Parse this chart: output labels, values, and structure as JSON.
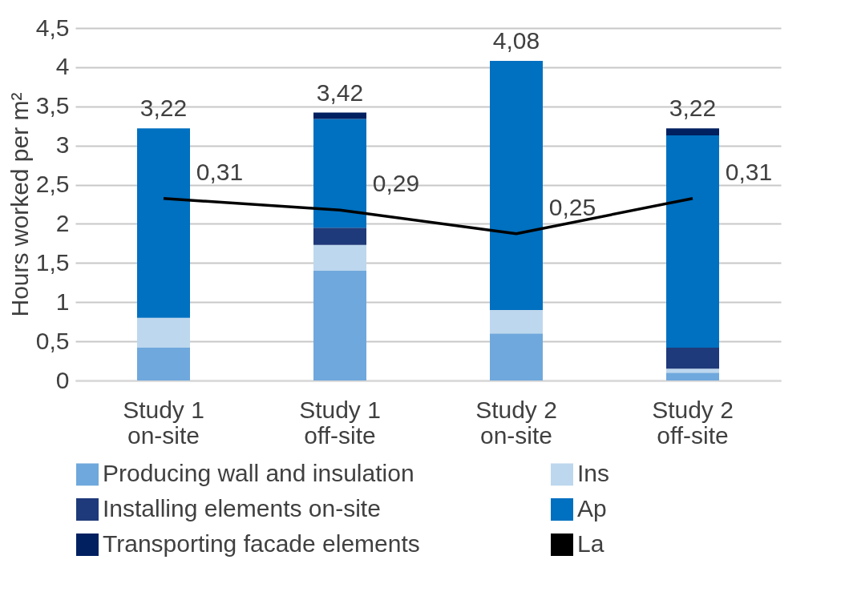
{
  "chart_data": {
    "type": "bar",
    "stacked": true,
    "ylabel": "Hours worked per m²",
    "categories": [
      "Study 1\non-site",
      "Study 1\noff-site",
      "Study 2\non-site",
      "Study 2\noff-site"
    ],
    "ylim": [
      0,
      4.5
    ],
    "yticks": [
      0,
      {
        "value": 0.5,
        "label": "0,5"
      },
      1,
      {
        "value": 1.5,
        "label": "1,5"
      },
      2,
      {
        "value": 2.5,
        "label": "2,5"
      },
      3,
      {
        "value": 3.5,
        "label": "3,5"
      },
      4,
      {
        "value": 4.5,
        "label": "4,5"
      }
    ],
    "y2lim": [
      0,
      0.6
    ],
    "grid": "y",
    "legend": "bottom",
    "totals": [
      "3,22",
      "3,42",
      "4,08",
      "3,22"
    ],
    "series": [
      {
        "name": "Producing wall and insulation",
        "color": "#6fa8dc",
        "values": [
          0.42,
          1.4,
          0.6,
          0.1
        ]
      },
      {
        "name": "Ins",
        "color": "#bdd7ee",
        "values": [
          0.38,
          0.33,
          0.3,
          0.05
        ]
      },
      {
        "name": "Installing elements on-site",
        "color": "#1f3a7a",
        "values": [
          0,
          0.22,
          0,
          0.27
        ]
      },
      {
        "name": "Ap",
        "color": "#0070c0",
        "values": [
          2.42,
          1.39,
          3.18,
          2.71
        ]
      },
      {
        "name": "Transporting facade elements",
        "color": "#002060",
        "values": [
          0,
          0.08,
          0,
          0.09
        ]
      },
      {
        "name": "La",
        "type": "line",
        "axis": "y2",
        "color": "#000000",
        "values": [
          0.31,
          0.29,
          0.25,
          0.31
        ],
        "value_labels": [
          "0,31",
          "0,29",
          "0,25",
          "0,31"
        ]
      }
    ]
  }
}
